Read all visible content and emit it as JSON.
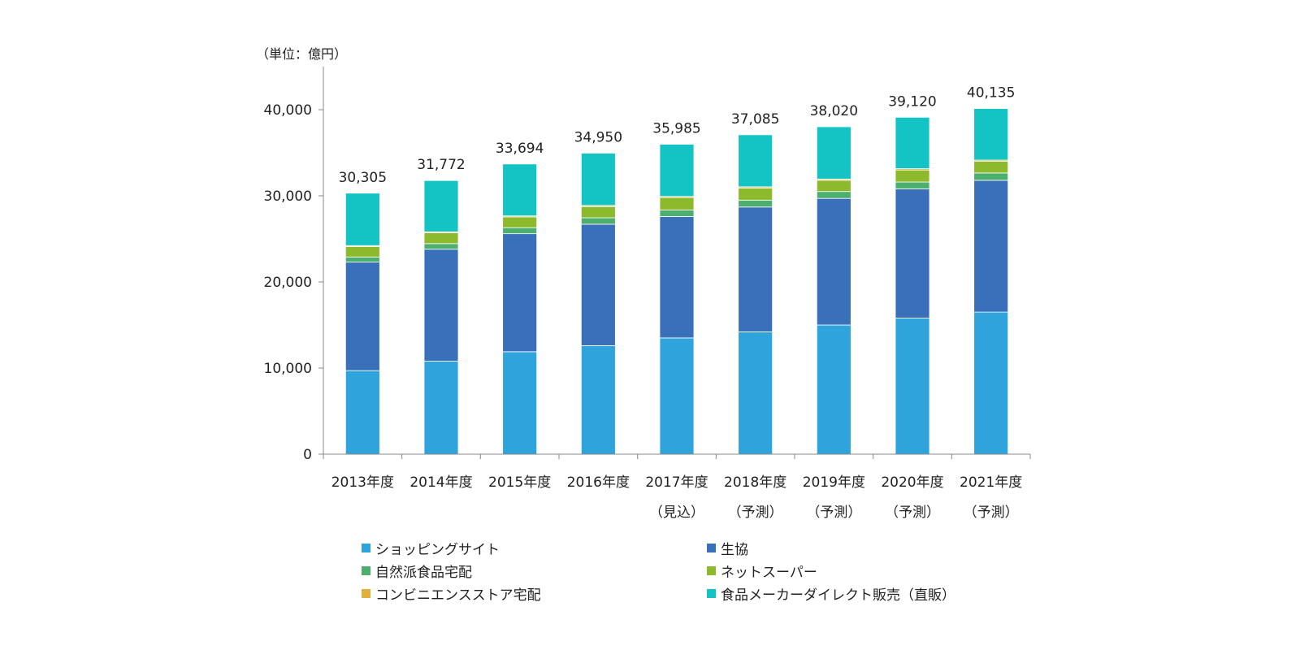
{
  "chart_data": {
    "type": "bar",
    "stacked": true,
    "unit_label": "（単位：億円）",
    "categories": [
      {
        "label": "2013年度",
        "sub": ""
      },
      {
        "label": "2014年度",
        "sub": ""
      },
      {
        "label": "2015年度",
        "sub": ""
      },
      {
        "label": "2016年度",
        "sub": ""
      },
      {
        "label": "2017年度",
        "sub": "（見込）"
      },
      {
        "label": "2018年度",
        "sub": "（予測）"
      },
      {
        "label": "2019年度",
        "sub": "（予測）"
      },
      {
        "label": "2020年度",
        "sub": "（予測）"
      },
      {
        "label": "2021年度",
        "sub": "（予測）"
      }
    ],
    "totals": [
      "30,305",
      "31,772",
      "33,694",
      "34,950",
      "35,985",
      "37,085",
      "38,020",
      "39,120",
      "40,135"
    ],
    "ylim": [
      0,
      45000
    ],
    "yticks": [
      {
        "value": 0,
        "label": "0"
      },
      {
        "value": 10000,
        "label": "10,000"
      },
      {
        "value": 20000,
        "label": "20,000"
      },
      {
        "value": 30000,
        "label": "30,000"
      },
      {
        "value": 40000,
        "label": "40,000"
      }
    ],
    "series": [
      {
        "name": "ショッピングサイト",
        "color": "#2ea3dc",
        "values": [
          9700,
          10800,
          11900,
          12600,
          13500,
          14200,
          15000,
          15800,
          16500
        ]
      },
      {
        "name": "生協",
        "color": "#3a6fba",
        "values": [
          12600,
          13000,
          13700,
          14100,
          14100,
          14500,
          14700,
          15000,
          15300
        ]
      },
      {
        "name": "自然派食品宅配",
        "color": "#4caf6e",
        "values": [
          600,
          650,
          700,
          750,
          750,
          800,
          800,
          800,
          850
        ]
      },
      {
        "name": "ネットスーパー",
        "color": "#8cba2c",
        "values": [
          1200,
          1250,
          1250,
          1300,
          1450,
          1400,
          1300,
          1400,
          1350
        ]
      },
      {
        "name": "コンビニエンスストア宅配",
        "color": "#e0b13a",
        "values": [
          120,
          120,
          120,
          130,
          130,
          150,
          150,
          150,
          150
        ]
      },
      {
        "name": "食品メーカーダイレクト販売（直販）",
        "color": "#14c3c3",
        "values": [
          6085,
          5952,
          6024,
          6070,
          6055,
          6035,
          6070,
          5970,
          5985
        ]
      }
    ],
    "legend_position": "bottom"
  }
}
